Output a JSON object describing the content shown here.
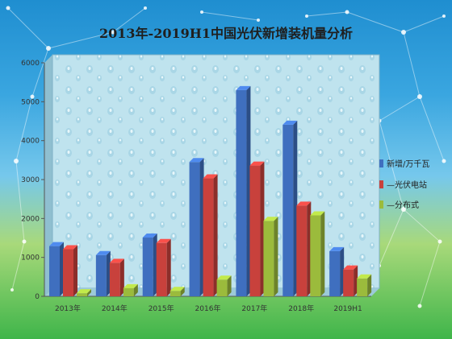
{
  "title": "2013年-2019H1中国光伏新增装机量分析",
  "chart_data": {
    "type": "bar",
    "categories": [
      "2013年",
      "2014年",
      "2015年",
      "2016年",
      "2017年",
      "2018年",
      "2019H1"
    ],
    "ylim": [
      0,
      6000
    ],
    "yticks": [
      0,
      1000,
      2000,
      3000,
      4000,
      5000,
      6000
    ],
    "grid": false,
    "legend_position": "right",
    "series": [
      {
        "name": "新增/万千瓦",
        "color": "#3f6fbf",
        "values": [
          1290,
          1060,
          1510,
          3450,
          5300,
          4410,
          1160
        ]
      },
      {
        "name": "光伏电站",
        "color": "#c8413c",
        "values": [
          1210,
          860,
          1370,
          3030,
          3360,
          2330,
          690
        ]
      },
      {
        "name": "分布式",
        "color": "#9bbb3c",
        "values": [
          80,
          210,
          140,
          430,
          1940,
          2080,
          460
        ]
      }
    ]
  }
}
